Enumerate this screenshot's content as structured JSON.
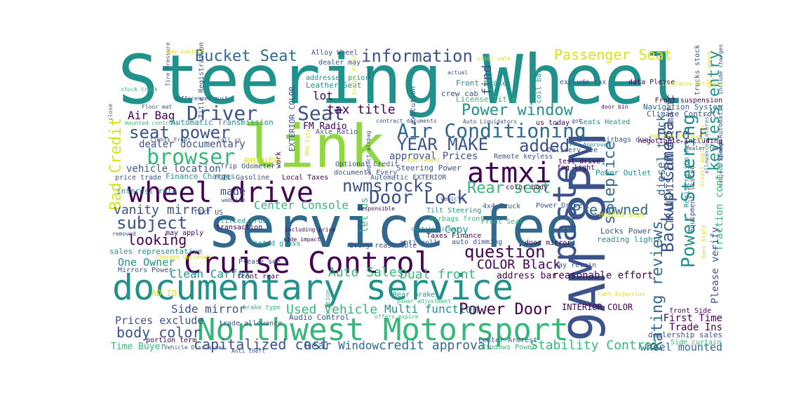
{
  "palette": {
    "dark_purple": "#440154",
    "indigo": "#3b528b",
    "blue": "#31688e",
    "teal": "#21918c",
    "green": "#35b779",
    "lime": "#90d743",
    "yellow": "#d8e219",
    "background": "#ffffff"
  },
  "words": [
    {
      "text": "Steering Wheel",
      "color": "#21918c"
    },
    {
      "text": "service fee",
      "color": "#31688e"
    },
    {
      "text": "documentary service",
      "color": "#21918c"
    },
    {
      "text": "9AM 8PM",
      "color": "#3b528b"
    },
    {
      "text": "link",
      "color": "#90d743"
    },
    {
      "text": "Cruise Control",
      "color": "#440154"
    },
    {
      "text": "Northwest Motorsport",
      "color": "#35b779"
    },
    {
      "text": "wheel drive",
      "color": "#440154"
    },
    {
      "text": "paste",
      "color": "#3b528b"
    },
    {
      "text": "atmxi",
      "color": "#440154"
    },
    {
      "text": "Air Conditioning",
      "color": "#31688e"
    },
    {
      "text": "Backup Camera",
      "color": "#3b528b"
    },
    {
      "text": "Power Steering",
      "color": "#21918c"
    },
    {
      "text": "Rating reviews",
      "color": "#31688e"
    },
    {
      "text": "Seat",
      "color": "#3b528b"
    },
    {
      "text": "Door Lock",
      "color": "#3b528b"
    },
    {
      "text": "nwmsrocks",
      "color": "#3b528b"
    },
    {
      "text": "browser",
      "color": "#35b779"
    },
    {
      "text": "Driver",
      "color": "#3b528b"
    },
    {
      "text": "seat power",
      "color": "#3b528b"
    },
    {
      "text": "information",
      "color": "#3b528b"
    },
    {
      "text": "Bucket Seat",
      "color": "#31688e"
    },
    {
      "text": "Passenger Seat",
      "color": "#d8e219"
    },
    {
      "text": "Power window",
      "color": "#21918c"
    },
    {
      "text": "YEAR MAKE",
      "color": "#3b528b"
    },
    {
      "text": "added",
      "color": "#3b528b"
    },
    {
      "text": "Rear seat",
      "color": "#35b779"
    },
    {
      "text": "question",
      "color": "#440154"
    },
    {
      "text": "Power Door",
      "color": "#440154"
    },
    {
      "text": "Ford F",
      "color": "#3b528b"
    },
    {
      "text": "keyless entry",
      "color": "#21918c"
    },
    {
      "text": "subject",
      "color": "#3b528b"
    },
    {
      "text": "body color",
      "color": "#3b528b"
    },
    {
      "text": "Bad Credit",
      "color": "#d8e219"
    },
    {
      "text": "saleprice",
      "color": "#31688e"
    },
    {
      "text": "Pre Owned",
      "color": "#31688e"
    },
    {
      "text": "looking",
      "color": "#440154"
    },
    {
      "text": "capitalized cost",
      "color": "#3b528b"
    },
    {
      "text": "credit approval",
      "color": "#31688e"
    },
    {
      "text": "Stability Control",
      "color": "#35b779"
    },
    {
      "text": "Auto Sales",
      "color": "#35b779"
    },
    {
      "text": "Dual front",
      "color": "#35b779"
    },
    {
      "text": "COLOR Black",
      "color": "#440154"
    },
    {
      "text": "Center Console",
      "color": "#35b779"
    },
    {
      "text": "vanity mirror",
      "color": "#3b528b"
    },
    {
      "text": "Air Bag",
      "color": "#440154"
    },
    {
      "text": "Clean Carfax",
      "color": "#21918c"
    },
    {
      "text": "Side mirror",
      "color": "#3b528b"
    },
    {
      "text": "Used Vehicle",
      "color": "#35b779"
    },
    {
      "text": "Multi function",
      "color": "#21918c"
    },
    {
      "text": "Rear Window",
      "color": "#31688e"
    },
    {
      "text": "Time Buyer",
      "color": "#35b779"
    },
    {
      "text": "Prices exclude",
      "color": "#3b528b"
    },
    {
      "text": "One Owner",
      "color": "#21918c"
    },
    {
      "text": "tax title",
      "color": "#440154"
    },
    {
      "text": "find",
      "color": "#3b528b"
    },
    {
      "text": "lot",
      "color": "#440154"
    },
    {
      "text": "made",
      "color": "#3b528b"
    },
    {
      "text": "ensure",
      "color": "#d8e219"
    },
    {
      "text": "Copy",
      "color": "#21918c"
    },
    {
      "text": "let us",
      "color": "#35b779"
    },
    {
      "text": "diesel truck",
      "color": "#31688e"
    },
    {
      "text": "TRANSMISSION Automatic",
      "color": "#3b528b"
    },
    {
      "text": "Traction control",
      "color": "#35b779"
    },
    {
      "text": "Please verify",
      "color": "#3b528b"
    },
    {
      "text": "First Time",
      "color": "#440154"
    },
    {
      "text": "Trade Ins",
      "color": "#440154"
    },
    {
      "text": "wheel mounted",
      "color": "#31688e"
    },
    {
      "text": "reasonable effort",
      "color": "#440154"
    },
    {
      "text": "INTERIOR COLOR",
      "color": "#440154"
    },
    {
      "text": "address bar",
      "color": "#440154"
    },
    {
      "text": "dealer documentary",
      "color": "#3b528b"
    },
    {
      "text": "vehicle location",
      "color": "#3b528b"
    },
    {
      "text": "approval Prices",
      "color": "#3b528b"
    },
    {
      "text": "FM Radio",
      "color": "#440154"
    },
    {
      "text": "Steering Power",
      "color": "#3b528b"
    },
    {
      "text": "AD ID",
      "color": "#d8e219"
    },
    {
      "text": "Audio Control",
      "color": "#3b528b"
    },
    {
      "text": "dealership sales",
      "color": "#3b528b"
    },
    {
      "text": "Navigation System",
      "color": "#31688e"
    },
    {
      "text": "Climate Control",
      "color": "#3b528b"
    },
    {
      "text": "Power Outlet",
      "color": "#21918c"
    },
    {
      "text": "Locks Power",
      "color": "#3b528b"
    },
    {
      "text": "reading lights",
      "color": "#21918c"
    },
    {
      "text": "interest rate",
      "color": "#21918c"
    },
    {
      "text": "sales representative",
      "color": "#21918c"
    },
    {
      "text": "Automatic Transmission",
      "color": "#21918c"
    },
    {
      "text": "Finance Charges",
      "color": "#21918c"
    },
    {
      "text": "EXTERIOR COLOR",
      "color": "#3b528b"
    },
    {
      "text": "Leather Seat",
      "color": "#21918c"
    },
    {
      "text": "Front brake",
      "color": "#21918c"
    },
    {
      "text": "License Title",
      "color": "#35b779"
    },
    {
      "text": "crew cab",
      "color": "#3b528b"
    },
    {
      "text": "Alloy Wheel",
      "color": "#3b528b"
    },
    {
      "text": "exclude tax",
      "color": "#3b528b"
    },
    {
      "text": "data Please",
      "color": "#440154"
    },
    {
      "text": "color body",
      "color": "#440154"
    },
    {
      "text": "Heated Seat",
      "color": "#d8e219"
    },
    {
      "text": "Power Driver",
      "color": "#3b528b"
    },
    {
      "text": "4x4 Truck",
      "color": "#3b528b"
    },
    {
      "text": "Delivery Fee",
      "color": "#3b528b"
    },
    {
      "text": "fog light",
      "color": "#440154"
    },
    {
      "text": "test drive",
      "color": "#440154"
    },
    {
      "text": "airbags dual",
      "color": "#3b528b"
    },
    {
      "text": "Seats Heated",
      "color": "#21918c"
    },
    {
      "text": "Local Taxes",
      "color": "#440154"
    },
    {
      "text": "Automatic EXTERIOR",
      "color": "#3b528b"
    },
    {
      "text": "FUEL Gasoline",
      "color": "#3b528b"
    },
    {
      "text": "Trip Odometer",
      "color": "#3b528b"
    },
    {
      "text": "TEXT US",
      "color": "#3b528b"
    },
    {
      "text": "transaction",
      "color": "#440154"
    },
    {
      "text": "lifted truck",
      "color": "#21918c"
    },
    {
      "text": "price trade",
      "color": "#3b528b"
    },
    {
      "text": "Axle Ratio",
      "color": "#3b528b"
    },
    {
      "text": "tinted glass",
      "color": "#21918c"
    },
    {
      "text": "Every reasonable",
      "color": "#3b528b"
    },
    {
      "text": "Rear brake",
      "color": "#21918c"
    },
    {
      "text": "front rear",
      "color": "#440154"
    },
    {
      "text": "Mirrors Power",
      "color": "#3b528b"
    },
    {
      "text": "trade allowance",
      "color": "#3b528b"
    },
    {
      "text": "portion term",
      "color": "#440154"
    },
    {
      "text": "Side curtain",
      "color": "#35b779"
    },
    {
      "text": "Windows Power",
      "color": "#35b779"
    },
    {
      "text": "Center Armrest",
      "color": "#3b528b"
    },
    {
      "text": "may retain",
      "color": "#3b528b"
    },
    {
      "text": "front Side",
      "color": "#440154"
    },
    {
      "text": "stock truck",
      "color": "#35b779"
    },
    {
      "text": "Floor mat",
      "color": "#3b528b"
    },
    {
      "text": "mounted controls",
      "color": "#35b779"
    },
    {
      "text": "lights Front",
      "color": "#3b528b"
    },
    {
      "text": "Call us",
      "color": "#3b528b"
    },
    {
      "text": "differences must",
      "color": "#3b528b"
    },
    {
      "text": "close",
      "color": "#3b528b"
    },
    {
      "text": "Title Registration",
      "color": "#3b528b"
    },
    {
      "text": "Tire Pressure",
      "color": "#3b528b"
    },
    {
      "text": "addressed prior",
      "color": "#21918c"
    },
    {
      "text": "dealer may",
      "color": "#3b528b"
    },
    {
      "text": "execution",
      "color": "#3b528b"
    },
    {
      "text": "documents Every",
      "color": "#3b528b"
    },
    {
      "text": "Auto Liquidators",
      "color": "#3b528b"
    },
    {
      "text": "us today",
      "color": "#440154"
    },
    {
      "text": "coil bar",
      "color": "#21918c"
    },
    {
      "text": "Front suspension",
      "color": "#440154"
    },
    {
      "text": "door bin",
      "color": "#440154"
    },
    {
      "text": "trucks stock",
      "color": "#3b528b"
    },
    {
      "text": "Speed Automatic",
      "color": "#3b528b"
    },
    {
      "text": "allowance interest",
      "color": "#21918c"
    },
    {
      "text": "equipment listed",
      "color": "#3b528b"
    },
    {
      "text": "Registration Fee",
      "color": "#21918c"
    },
    {
      "text": "negotiable including",
      "color": "#440154"
    },
    {
      "text": "Pre Approved",
      "color": "#21918c"
    },
    {
      "text": "Tilt Steering",
      "color": "#21918c"
    },
    {
      "text": "airbags front",
      "color": "#35b779"
    },
    {
      "text": "Taxes Finance",
      "color": "#440154"
    },
    {
      "text": "curtain airbag",
      "color": "#21918c"
    },
    {
      "text": "door mirror",
      "color": "#440154"
    },
    {
      "text": "auto dimming",
      "color": "#3b528b"
    },
    {
      "text": "power adjustment",
      "color": "#35b779"
    },
    {
      "text": "offers expire",
      "color": "#35b779"
    },
    {
      "text": "Anti theft",
      "color": "#3b528b"
    },
    {
      "text": "Vehicle Disclaimer",
      "color": "#3b528b"
    },
    {
      "text": "brake type",
      "color": "#35b779"
    },
    {
      "text": "four wheel",
      "color": "#d8e219"
    },
    {
      "text": "Remote keyless",
      "color": "#3b528b"
    },
    {
      "text": "Front Seat",
      "color": "#35b779"
    },
    {
      "text": "vehicle",
      "color": "#3b528b"
    },
    {
      "text": "impact airbag",
      "color": "#3b528b"
    },
    {
      "text": "Optional Credit",
      "color": "#3b528b"
    },
    {
      "text": "work",
      "color": "#440154"
    },
    {
      "text": "including price",
      "color": "#440154"
    },
    {
      "text": "may apply",
      "color": "#440154"
    },
    {
      "text": "side impact",
      "color": "#440154"
    },
    {
      "text": "anti roll",
      "color": "#3b528b"
    },
    {
      "text": "responsible",
      "color": "#440154"
    },
    {
      "text": "website",
      "color": "#3b528b"
    },
    {
      "text": "removed",
      "color": "#3b528b"
    },
    {
      "text": "Please see",
      "color": "#3b528b"
    },
    {
      "text": "location",
      "color": "#35b779"
    },
    {
      "text": "contract documents",
      "color": "#3b528b"
    },
    {
      "text": "Credit First",
      "color": "#d8e219"
    },
    {
      "text": "want",
      "color": "#3b528b"
    },
    {
      "text": "prior sale",
      "color": "#d8e219"
    },
    {
      "text": "actual",
      "color": "#3b528b"
    },
    {
      "text": "may subject",
      "color": "#d8e219"
    },
    {
      "text": "MPG City",
      "color": "#d8e219"
    },
    {
      "text": "Charges Optional",
      "color": "#d8e219"
    },
    {
      "text": "Sees State",
      "color": "#d8e219"
    },
    {
      "text": "Insurance Delivery",
      "color": "#d8e219"
    },
    {
      "text": "split bench",
      "color": "#d8e219"
    },
    {
      "text": "include charges",
      "color": "#3b528b"
    },
    {
      "text": "Fuel Injection",
      "color": "#d8e219"
    },
    {
      "text": "Credit Application",
      "color": "#d8e219"
    },
    {
      "text": "subject change",
      "color": "#3b528b"
    },
    {
      "text": "Vehicle Pricing",
      "color": "#d8e219"
    },
    {
      "text": "Dealer fees",
      "color": "#3b528b"
    },
    {
      "text": "got",
      "color": "#3b528b"
    }
  ]
}
